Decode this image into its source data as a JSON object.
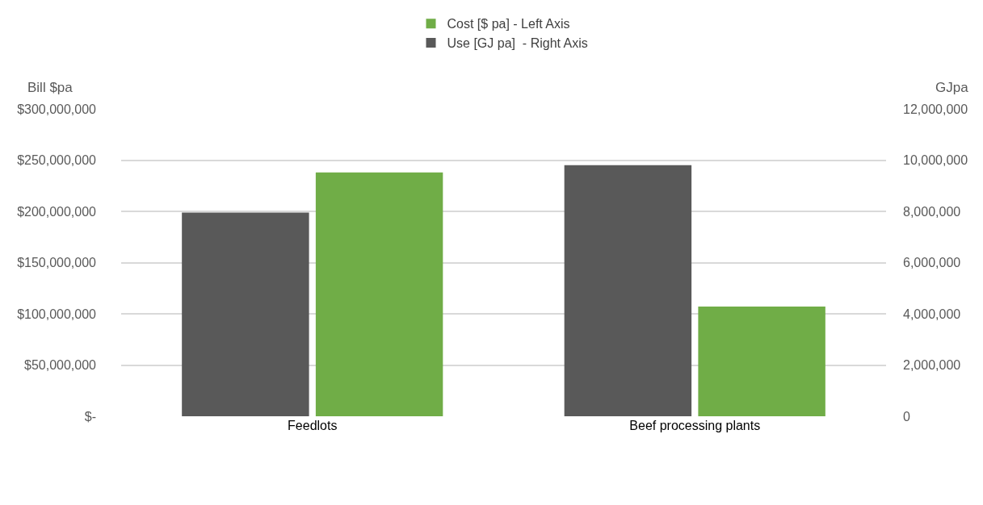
{
  "chart_data": {
    "type": "bar",
    "categories": [
      "Feedlots",
      "Beef processing plants"
    ],
    "series": [
      {
        "name": "Use [GJ pa]  - Right Axis",
        "color": "#595959",
        "values": [
          7950000,
          9800000
        ],
        "axis": "y2"
      },
      {
        "name": "Cost [$ pa] - Left Axis",
        "color": "#70ad47",
        "values": [
          238000000,
          107000000
        ],
        "axis": "y"
      }
    ],
    "ylabel": "Bill $pa",
    "y2label": "GJpa",
    "ylim": [
      0,
      300000000
    ],
    "yticks": [
      {
        "value": 0,
        "label": "$-"
      },
      {
        "value": 50000000,
        "label": "$50,000,000"
      },
      {
        "value": 100000000,
        "label": "$100,000,000"
      },
      {
        "value": 150000000,
        "label": "$150,000,000"
      },
      {
        "value": 200000000,
        "label": "$200,000,000"
      },
      {
        "value": 250000000,
        "label": "$250,000,000"
      },
      {
        "value": 300000000,
        "label": "$300,000,000"
      }
    ],
    "y2lim": [
      0,
      12000000
    ],
    "y2ticks": [
      0,
      {
        "value": 2000000,
        "label": "2,000,000"
      },
      {
        "value": 4000000,
        "label": "4,000,000"
      },
      {
        "value": 6000000,
        "label": "6,000,000"
      },
      {
        "value": 8000000,
        "label": "8,000,000"
      },
      {
        "value": 10000000,
        "label": "10,000,000"
      },
      {
        "value": 12000000,
        "label": "12,000,000"
      }
    ],
    "grid": "y",
    "legend": "top"
  }
}
